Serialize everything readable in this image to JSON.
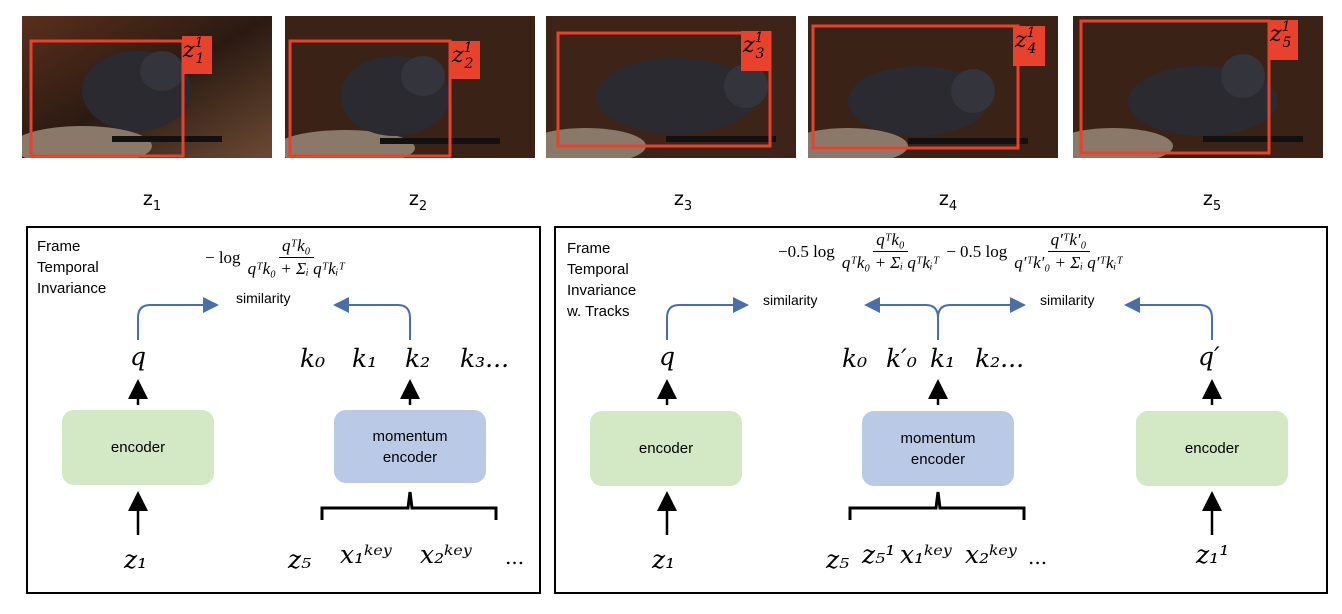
{
  "frames": [
    {
      "label_main": "z",
      "label_sub": "1",
      "tag": "1",
      "tag_sub": "1"
    },
    {
      "label_main": "z",
      "label_sub": "2",
      "tag": "1",
      "tag_sub": "2"
    },
    {
      "label_main": "z",
      "label_sub": "3",
      "tag": "1",
      "tag_sub": "3"
    },
    {
      "label_main": "z",
      "label_sub": "4",
      "tag": "1",
      "tag_sub": "4"
    },
    {
      "label_main": "z",
      "label_sub": "5",
      "tag": "1",
      "tag_sub": "5"
    }
  ],
  "colors": {
    "box_red": "#e8412c",
    "encoder_green": "#d3e8c4",
    "momentum_blue": "#b9c9e6",
    "arrow_blue": "#4a6fa8"
  },
  "left_panel": {
    "title": "Frame\nTemporal\nInvariance",
    "formula": {
      "prefix": "− log",
      "num": "qᵀk₀",
      "den": "qᵀk₀ + Σᵢ qᵀkᵢᵀ"
    },
    "similarity": "similarity",
    "q": "q",
    "keys": [
      "k₀",
      "k₁",
      "k₂",
      "k₃..."
    ],
    "encoder": "encoder",
    "momentum_encoder": "momentum\nencoder",
    "input_left": "z₁",
    "inputs_right": [
      "z₅",
      "x₁ᵏᵉʸ",
      "x₂ᵏᵉʸ",
      "..."
    ]
  },
  "right_panel": {
    "title": "Frame\nTemporal\nInvariance\nw. Tracks",
    "formula": {
      "prefix1": "−0.5 log",
      "num1": "qᵀk₀",
      "den1": "qᵀk₀ + Σᵢ qᵀkᵢᵀ",
      "prefix2": "− 0.5 log",
      "num2": "q′ᵀk′₀",
      "den2": "q′ᵀk′₀ + Σᵢ q′ᵀkᵢᵀ"
    },
    "similarity_left": "similarity",
    "similarity_right": "similarity",
    "q": "q",
    "q_prime": "q′",
    "keys": [
      "k₀",
      "k′₀",
      "k₁",
      "k₂..."
    ],
    "encoder_left": "encoder",
    "momentum_encoder": "momentum\nencoder",
    "encoder_right": "encoder",
    "input_left": "z₁",
    "inputs_mid": [
      "z₅",
      "z₅¹",
      "x₁ᵏᵉʸ",
      "x₂ᵏᵉʸ",
      "..."
    ],
    "input_right": "z₁¹"
  }
}
